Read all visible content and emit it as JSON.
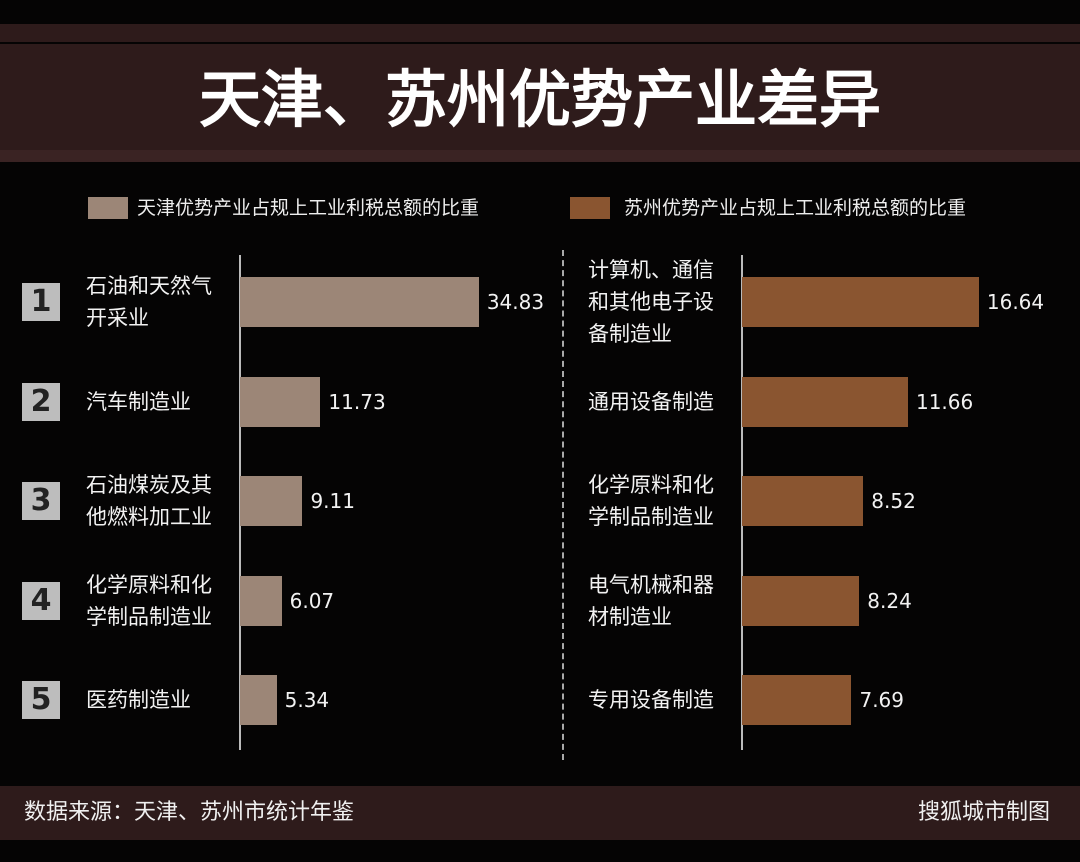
{
  "title": "天津、苏州优势产业差异",
  "ranks": [
    1,
    2,
    3,
    4,
    5
  ],
  "chart_data": [
    {
      "type": "bar",
      "orientation": "horizontal",
      "categories": [
        "石油和天然气开采业",
        "汽车制造业",
        "石油煤炭及其他燃料加工业",
        "化学原料和化学制品制造业",
        "医药制造业"
      ],
      "series": [
        {
          "name": "天津优势产业占规上工业利税总额的比重",
          "color": "#9c8677",
          "values": [
            34.83,
            11.73,
            9.11,
            6.07,
            5.34
          ]
        }
      ],
      "xlim": [
        0,
        35
      ]
    },
    {
      "type": "bar",
      "orientation": "horizontal",
      "categories": [
        "计算机、通信和其他电子设备制造业",
        "通用设备制造",
        "化学原料和化学制品制造业",
        "电气机械和器材制造业",
        "专用设备制造"
      ],
      "series": [
        {
          "name": "苏州优势产业占规上工业利税总额的比重",
          "color": "#8a5530",
          "values": [
            16.64,
            11.66,
            8.52,
            8.24,
            7.69
          ]
        }
      ],
      "xlim": [
        0,
        17
      ]
    }
  ],
  "source": "数据来源：天津、苏州市统计年鉴",
  "credit": "搜狐城市制图"
}
